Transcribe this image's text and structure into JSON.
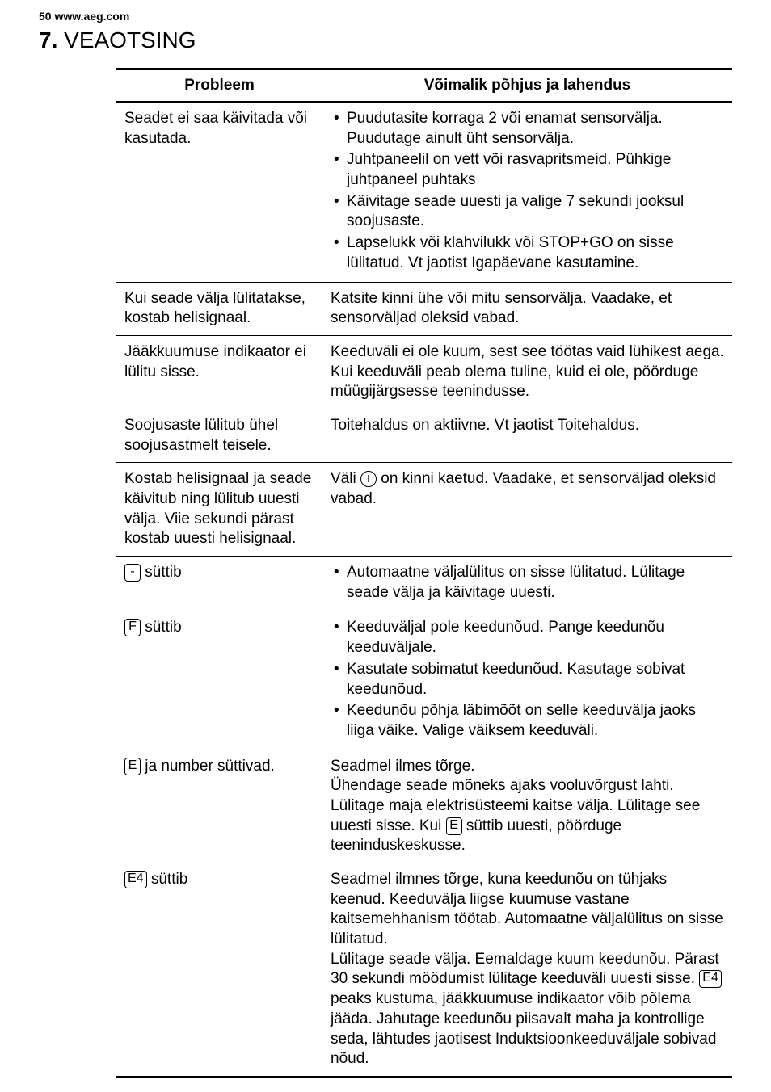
{
  "page_header": "50   www.aeg.com",
  "chapter": {
    "number": "7.",
    "title": "VEAOTSING"
  },
  "table": {
    "headers": {
      "problem": "Probleem",
      "solution": "Võimalik põhjus ja lahendus"
    },
    "rows": [
      {
        "problem_text": "Seadet ei saa käivitada või kasutada.",
        "bullets": [
          "Puudutasite korraga 2 või enamat sensorvälja. Puudutage ainult üht sensorvälja.",
          "Juhtpaneelil on vett või rasvapritsmeid. Pühkige juhtpaneel puhtaks",
          "Käivitage seade uuesti ja valige 7 sekundi jooksul soojusaste.",
          "Lapselukk või klahvilukk või STOP+GO on sisse lülitatud. Vt jaotist Igapäevane kasutamine."
        ]
      },
      {
        "problem_text": "Kui seade välja lülitatakse, kostab helisignaal.",
        "solution_text": "Katsite kinni ühe või mitu sensorvälja. Vaadake, et sensorväljad oleksid vabad."
      },
      {
        "problem_text": "Jääkkuumuse indikaator ei lülitu sisse.",
        "solution_text": "Keeduväli ei ole kuum, sest see töötas vaid lühikest aega. Kui keeduväli peab olema tuline, kuid ei ole, pöörduge müügijärgsesse teenindusse."
      },
      {
        "problem_text": "Soojusaste lülitub ühel soojusastmelt teisele.",
        "solution_text": "Toitehaldus on aktiivne. Vt jaotist Toitehaldus."
      },
      {
        "problem_text": "Kostab helisignaal ja seade käivitub ning lülitub uuesti välja. Viie sekundi pärast kostab uuesti helisignaal.",
        "solution_pre": "Väli ",
        "solution_post": " on kinni kaetud. Vaadake, et sensorväljad oleksid vabad."
      },
      {
        "problem_icon": "-",
        "problem_suffix": " süttib",
        "bullets": [
          "Automaatne väljalülitus on sisse lülitatud. Lülitage seade välja ja käivitage uuesti."
        ]
      },
      {
        "problem_icon": "F",
        "problem_suffix": " süttib",
        "bullets": [
          "Keeduväljal pole keedunõud. Pange keedunõu keeduväljale.",
          "Kasutate sobimatut keedunõud. Kasutage sobivat keedunõud.",
          "Keedunõu põhja läbimõõt on selle keeduvälja jaoks liiga väike. Valige väiksem keeduväli."
        ]
      },
      {
        "problem_icon": "E",
        "problem_suffix": " ja number süttivad.",
        "solution_lines": {
          "l1": "Seadmel ilmes tõrge.",
          "l2": "Ühendage seade mõneks ajaks vooluvõrgust lahti. Lülitage maja elektrisüsteemi kaitse välja. Lülitage see uuesti sisse. Kui ",
          "l3": " süttib uuesti, pöörduge teeninduskeskusse."
        }
      },
      {
        "problem_icon": "E4",
        "problem_suffix": " süttib",
        "solution_lines": {
          "l1": "Seadmel ilmnes tõrge, kuna keedunõu on tühjaks keenud. Keeduvälja liigse kuumuse vastane kaitsemehhanism töötab. Automaatne väljalülitus on sisse lülitatud.",
          "l2": "Lülitage seade välja. Eemaldage kuum keedunõu. Pärast 30 sekundi möödumist lülitage keeduväli uuesti sisse. ",
          "l3": " peaks kustuma, jääkkuumuse indikaator võib põlema jääda. Jahutage keedunõu piisavalt maha ja kontrollige seda, lähtudes jaotisest Induktsioonkeeduväljale sobivad nõud."
        }
      }
    ]
  },
  "icons": {
    "E": "E",
    "F": "F",
    "E4": "E4",
    "minus": "-",
    "power": "I"
  }
}
